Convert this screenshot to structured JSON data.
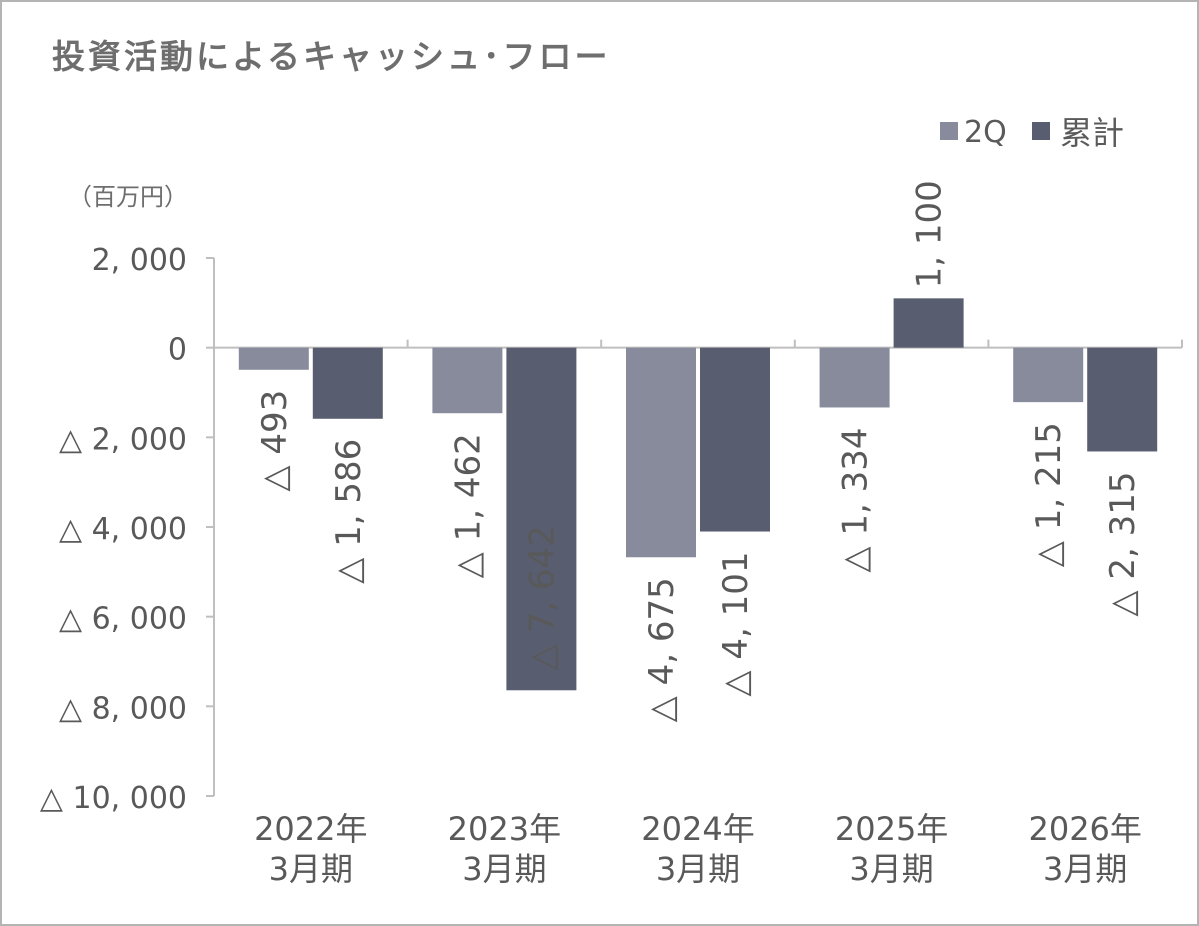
{
  "chart_data": {
    "type": "bar",
    "title": "投資活動によるキャッシュ･フロー",
    "unit_label": "（百万円）",
    "categories": [
      [
        "2022年",
        "3月期"
      ],
      [
        "2023年",
        "3月期"
      ],
      [
        "2024年",
        "3月期"
      ],
      [
        "2025年",
        "3月期"
      ],
      [
        "2026年",
        "3月期"
      ]
    ],
    "series": [
      {
        "name": "2Q",
        "color": "#878b9c",
        "values": [
          -493,
          -1462,
          -4675,
          -1334,
          -1215
        ],
        "labels": [
          "△ 493",
          "△ 1, 462",
          "△ 4, 675",
          "△ 1, 334",
          "△ 1, 215"
        ]
      },
      {
        "name": "累計",
        "color": "#585d70",
        "values": [
          -1586,
          -7642,
          -4101,
          1100,
          -2315
        ],
        "labels": [
          "△ 1, 586",
          "△ 7, 642",
          "△ 4, 101",
          "1, 100",
          "△ 2, 315"
        ]
      }
    ],
    "y_ticks": [
      2000,
      0,
      -2000,
      -4000,
      -6000,
      -8000,
      -10000
    ],
    "y_tick_labels": [
      "2, 000",
      "0",
      "△ 2, 000",
      "△ 4, 000",
      "△ 6, 000",
      "△ 8, 000",
      "△ 10, 000"
    ],
    "ylim": [
      -10000,
      2000
    ],
    "grid": false,
    "legend_position": "top-right",
    "axis_color": "#bfbfbf"
  }
}
